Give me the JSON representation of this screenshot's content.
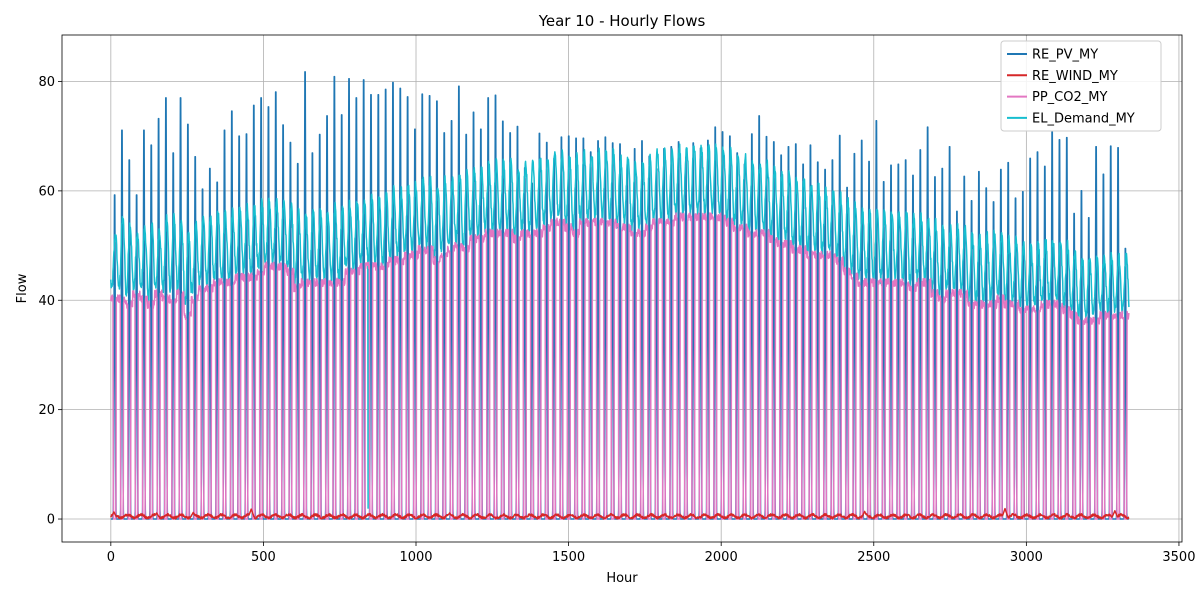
{
  "chart_data": {
    "type": "line",
    "title": "Year 10 - Hourly Flows",
    "xlabel": "Hour",
    "ylabel": "Flow",
    "xlim": [
      -160,
      3510
    ],
    "ylim": [
      -4.2,
      88.5
    ],
    "x_ticks": [
      0,
      500,
      1000,
      1500,
      2000,
      2500,
      3000,
      3500
    ],
    "x_tick_labels": [
      "0",
      "500",
      "1000",
      "1500",
      "2000",
      "2500",
      "3000",
      "3500"
    ],
    "y_ticks": [
      0,
      20,
      40,
      60,
      80
    ],
    "y_tick_labels": [
      "0",
      "20",
      "40",
      "60",
      "80"
    ],
    "grid": true,
    "legend_position": "top-right",
    "x_range": [
      0,
      3336
    ],
    "series": [
      {
        "name": "RE_PV_MY",
        "color": "#1f77b4",
        "kind": "daily-peaks",
        "daily_peaks": [
          61.1,
          73.3,
          67.7,
          61.1,
          73.3,
          70.5,
          75.5,
          79.4,
          69.0,
          79.4,
          74.4,
          68.3,
          62.2,
          66.1,
          63.5,
          73.3,
          76.9,
          72.2,
          72.6,
          78.0,
          79.4,
          77.7,
          80.5,
          74.3,
          71.0,
          67.0,
          84.3,
          69.0,
          72.5,
          76.0,
          83.4,
          76.2,
          83.0,
          79.4,
          82.8,
          80.0,
          80.0,
          81.0,
          82.3,
          81.2,
          79.6,
          73.5,
          80.1,
          79.8,
          78.8,
          72.8,
          75.1,
          81.6,
          72.5,
          76.7,
          73.5,
          79.4,
          79.9,
          75.0,
          72.8,
          74.0,
          66.2,
          63.3,
          72.7,
          71.0,
          68.0,
          72.0,
          72.2,
          71.8,
          71.8,
          69.2,
          71.3,
          72.0,
          70.9,
          70.7,
          66.9,
          69.8,
          71.3,
          68.4,
          66.0,
          69.8,
          70.2,
          71.1,
          68.2,
          70.9,
          69.9,
          71.4,
          73.9,
          73.0,
          72.2,
          69.0,
          66.9,
          72.6,
          76.0,
          72.1,
          71.1,
          68.6,
          70.2,
          70.7,
          66.9,
          70.5,
          67.3,
          65.9,
          67.7,
          72.3,
          62.5,
          68.9,
          71.4,
          67.4,
          75.1,
          63.6,
          66.7,
          66.9,
          67.7,
          64.8,
          69.6,
          73.9,
          64.5,
          66.1,
          70.2,
          58.0,
          64.6,
          60.0,
          65.5,
          62.4,
          59.8,
          65.9,
          67.2,
          60.5,
          61.7,
          68.0,
          69.2,
          66.5,
          73.0,
          71.5,
          71.9,
          57.6,
          61.9,
          56.8,
          70.2,
          65.0,
          70.3,
          70.0,
          51.0
        ]
      },
      {
        "name": "RE_WIND_MY",
        "color": "#d62728",
        "kind": "low-noise",
        "typical_max": 1.5,
        "notable_peaks": [
          [
            10,
            1.3
          ],
          [
            150,
            1.1
          ],
          [
            270,
            1.2
          ],
          [
            460,
            1.8
          ],
          [
            1110,
            1.1
          ],
          [
            2470,
            1.4
          ],
          [
            2930,
            1.9
          ],
          [
            3290,
            1.5
          ]
        ]
      },
      {
        "name": "PP_CO2_MY",
        "color": "#e377c2",
        "kind": "daily-plateau",
        "daily_top": [
          41,
          41,
          40,
          42,
          41,
          40,
          42,
          41,
          41,
          42,
          38,
          41,
          43,
          43,
          44,
          44,
          44,
          45,
          45,
          45,
          46,
          47,
          47,
          47,
          46,
          43,
          44,
          44,
          44,
          44,
          44,
          44,
          46,
          46,
          47,
          47,
          47,
          47,
          48,
          48,
          49,
          49,
          50,
          50,
          48,
          49,
          50,
          51,
          50,
          52,
          52,
          53,
          53,
          53,
          53,
          52,
          53,
          53,
          53,
          54,
          55,
          55,
          54,
          53,
          55,
          55,
          55,
          55,
          55,
          54,
          54,
          53,
          53,
          54,
          55,
          55,
          55,
          56,
          56,
          56,
          56,
          56,
          56,
          56,
          55,
          54,
          54,
          53,
          53,
          53,
          52,
          51,
          51,
          50,
          50,
          49,
          49,
          49,
          49,
          48,
          46,
          45,
          44,
          44,
          44,
          44,
          44,
          44,
          44,
          43,
          44,
          44,
          42,
          41,
          42,
          42,
          42,
          40,
          40,
          40,
          40,
          41,
          40,
          40,
          39,
          39,
          39,
          40,
          40,
          40,
          39,
          38,
          37,
          37,
          37,
          38,
          38,
          38,
          38,
          38,
          38
        ]
      },
      {
        "name": "EL_Demand_MY",
        "color": "#17becf",
        "kind": "daily-wave",
        "outage_hour": 843,
        "outage_value": 2,
        "daily_peak": [
          52,
          55,
          54,
          52,
          53,
          54,
          53,
          55,
          55,
          54,
          52,
          54,
          55,
          55,
          56,
          56,
          56,
          57,
          57,
          57,
          58,
          58,
          58,
          58,
          57,
          56,
          56,
          56,
          56,
          56,
          57,
          57,
          58,
          58,
          58,
          59,
          59,
          59,
          60,
          60,
          61,
          61,
          62,
          62,
          61,
          62,
          62,
          63,
          63,
          64,
          64,
          65,
          65,
          65,
          65,
          64,
          65,
          65,
          66,
          66,
          67,
          67,
          66,
          66,
          67,
          67,
          67,
          67,
          67,
          66,
          66,
          65,
          65,
          66,
          67,
          67,
          67,
          68,
          68,
          68,
          68,
          68,
          68,
          68,
          67,
          66,
          66,
          65,
          65,
          65,
          64,
          63,
          63,
          62,
          62,
          61,
          61,
          60,
          60,
          59,
          58,
          57,
          56,
          56,
          56,
          56,
          56,
          56,
          56,
          55,
          55,
          55,
          54,
          53,
          53,
          53,
          53,
          52,
          52,
          52,
          52,
          52,
          51,
          51,
          50,
          50,
          50,
          51,
          51,
          51,
          50,
          49,
          48,
          48,
          48,
          48,
          48,
          48,
          48,
          48,
          48
        ],
        "daily_trough": [
          42,
          42,
          41,
          42,
          42,
          40,
          42,
          42,
          42,
          42,
          39,
          42,
          43,
          43,
          44,
          44,
          44,
          45,
          45,
          45,
          46,
          47,
          47,
          47,
          46,
          43,
          44,
          44,
          44,
          44,
          44,
          44,
          46,
          46,
          47,
          47,
          47,
          47,
          48,
          48,
          49,
          49,
          50,
          50,
          48,
          49,
          50,
          51,
          50,
          52,
          52,
          53,
          53,
          53,
          53,
          52,
          53,
          53,
          53,
          54,
          55,
          55,
          54,
          53,
          55,
          55,
          55,
          55,
          55,
          54,
          54,
          53,
          53,
          54,
          55,
          55,
          55,
          56,
          56,
          56,
          56,
          56,
          56,
          56,
          55,
          54,
          54,
          53,
          53,
          53,
          52,
          51,
          51,
          50,
          50,
          49,
          49,
          49,
          49,
          48,
          46,
          45,
          44,
          44,
          44,
          44,
          44,
          44,
          44,
          43,
          44,
          44,
          42,
          41,
          42,
          42,
          42,
          40,
          40,
          40,
          40,
          41,
          40,
          40,
          39,
          39,
          39,
          40,
          40,
          40,
          39,
          38,
          37,
          37,
          37,
          38,
          38,
          38,
          38,
          38,
          38
        ]
      }
    ]
  }
}
